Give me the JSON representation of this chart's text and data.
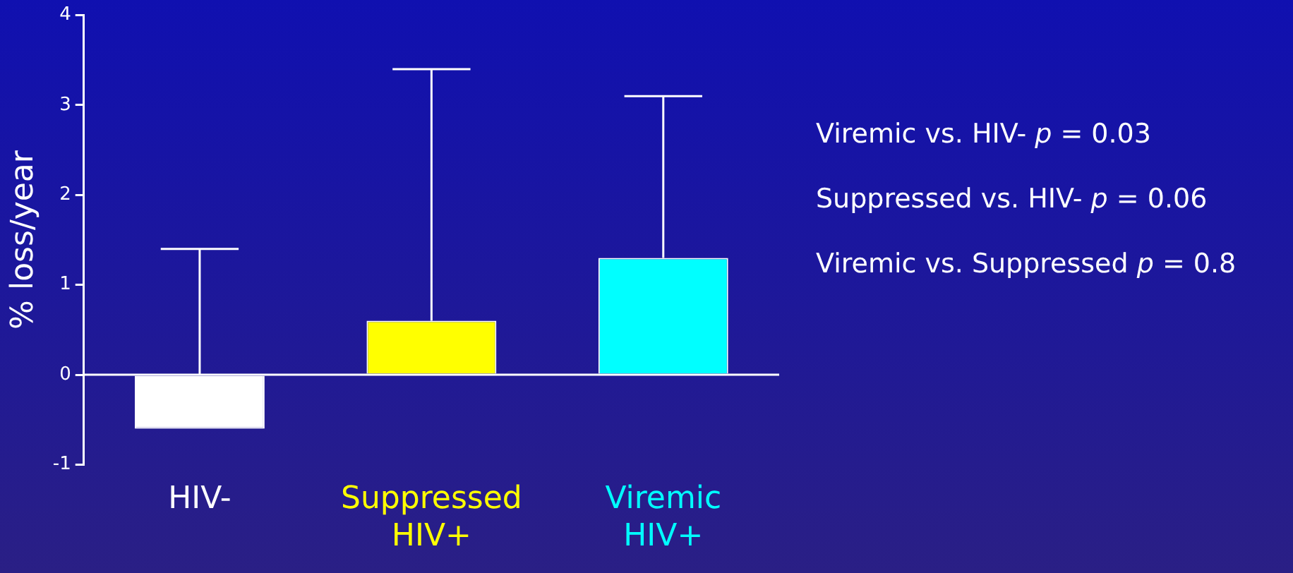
{
  "chart_data": {
    "type": "bar",
    "ylabel": "% loss/year",
    "categories": [
      "HIV-",
      "Suppressed HIV+",
      "Viremic HIV+"
    ],
    "values": [
      -0.6,
      0.6,
      1.3
    ],
    "colors": [
      "#ffffff",
      "#ffff00",
      "#00ffff"
    ],
    "errors": [
      [
        0,
        1.4
      ],
      [
        0.6,
        3.4
      ],
      [
        1.3,
        3.1
      ]
    ],
    "ref_lines": [
      {
        "axis": "y",
        "value": 0,
        "color": "#ffffff"
      }
    ],
    "ylim": [
      -1,
      4
    ],
    "yticks": [
      -1,
      0,
      1,
      2,
      3,
      4
    ],
    "grid": false,
    "legend": false,
    "annotations": [
      "Viremic vs. HIV- p = 0.03",
      "Suppressed vs. HIV- p = 0.06",
      "Viremic vs. Suppressed p = 0.8"
    ]
  }
}
